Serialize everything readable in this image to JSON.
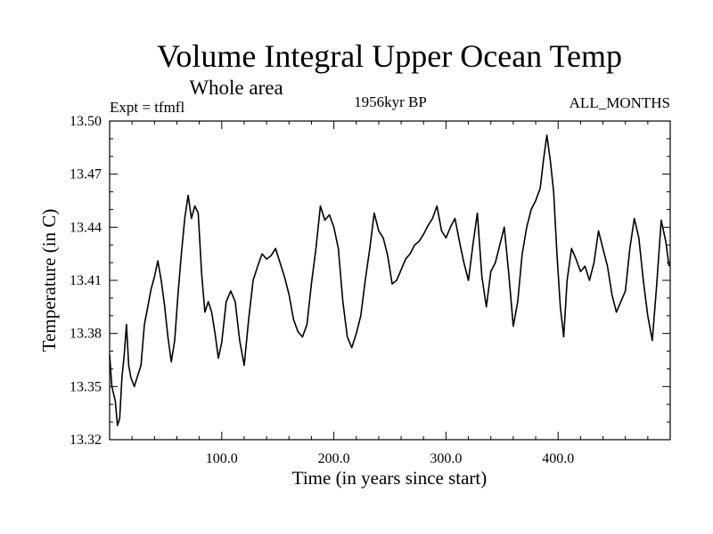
{
  "chart_data": {
    "type": "line",
    "title": "Volume Integral Upper Ocean Temp",
    "subtitle": "Whole area",
    "left_note": "Expt = tfmfl",
    "center_note": "1956kyr BP",
    "right_note": "ALL_MONTHS",
    "xlabel": "Time (in years since start)",
    "ylabel": "Temperature (in C)",
    "xlim": [
      0,
      500
    ],
    "ylim": [
      13.32,
      13.5
    ],
    "x_ticks": [
      100,
      200,
      300,
      400
    ],
    "x_tick_labels": [
      "100.0",
      "200.0",
      "300.0",
      "400.0"
    ],
    "y_ticks": [
      13.32,
      13.35,
      13.38,
      13.41,
      13.44,
      13.47,
      13.5
    ],
    "y_tick_labels": [
      "13.32",
      "13.35",
      "13.38",
      "13.41",
      "13.44",
      "13.47",
      "13.50"
    ],
    "series": [
      {
        "name": "Temperature",
        "x": [
          0,
          2,
          5,
          7,
          9,
          11,
          13,
          15,
          17,
          19,
          22,
          25,
          28,
          31,
          34,
          37,
          40,
          43,
          46,
          49,
          52,
          55,
          58,
          61,
          64,
          67,
          70,
          73,
          76,
          79,
          82,
          85,
          88,
          91,
          94,
          97,
          100,
          104,
          108,
          112,
          116,
          120,
          124,
          128,
          132,
          136,
          140,
          144,
          148,
          152,
          156,
          160,
          164,
          168,
          172,
          176,
          180,
          184,
          188,
          192,
          196,
          200,
          204,
          208,
          212,
          216,
          220,
          224,
          228,
          232,
          236,
          240,
          244,
          248,
          252,
          256,
          260,
          264,
          268,
          272,
          276,
          280,
          284,
          288,
          292,
          296,
          300,
          304,
          308,
          312,
          316,
          320,
          324,
          328,
          332,
          336,
          340,
          344,
          348,
          352,
          356,
          360,
          364,
          368,
          372,
          376,
          380,
          384,
          387,
          390,
          393,
          396,
          399,
          402,
          405,
          408,
          412,
          416,
          420,
          424,
          428,
          432,
          436,
          440,
          444,
          448,
          452,
          456,
          460,
          464,
          468,
          472,
          476,
          480,
          484,
          488,
          492,
          496,
          499
        ],
        "values": [
          13.368,
          13.35,
          13.342,
          13.328,
          13.332,
          13.355,
          13.368,
          13.385,
          13.362,
          13.355,
          13.35,
          13.356,
          13.362,
          13.385,
          13.395,
          13.405,
          13.412,
          13.421,
          13.41,
          13.396,
          13.378,
          13.364,
          13.376,
          13.402,
          13.425,
          13.445,
          13.458,
          13.445,
          13.452,
          13.448,
          13.414,
          13.392,
          13.398,
          13.392,
          13.38,
          13.366,
          13.375,
          13.398,
          13.404,
          13.398,
          13.376,
          13.362,
          13.388,
          13.41,
          13.418,
          13.425,
          13.422,
          13.424,
          13.428,
          13.42,
          13.412,
          13.402,
          13.388,
          13.381,
          13.378,
          13.385,
          13.408,
          13.428,
          13.452,
          13.444,
          13.447,
          13.44,
          13.428,
          13.398,
          13.378,
          13.372,
          13.38,
          13.39,
          13.41,
          13.428,
          13.448,
          13.438,
          13.434,
          13.424,
          13.408,
          13.41,
          13.416,
          13.422,
          13.425,
          13.43,
          13.432,
          13.436,
          13.441,
          13.445,
          13.452,
          13.438,
          13.434,
          13.44,
          13.445,
          13.432,
          13.42,
          13.41,
          13.43,
          13.448,
          13.412,
          13.395,
          13.415,
          13.42,
          13.43,
          13.44,
          13.414,
          13.384,
          13.398,
          13.425,
          13.44,
          13.45,
          13.455,
          13.462,
          13.478,
          13.492,
          13.478,
          13.46,
          13.425,
          13.395,
          13.378,
          13.41,
          13.428,
          13.422,
          13.415,
          13.418,
          13.41,
          13.42,
          13.438,
          13.428,
          13.418,
          13.402,
          13.392,
          13.398,
          13.404,
          13.428,
          13.445,
          13.434,
          13.41,
          13.39,
          13.376,
          13.408,
          13.444,
          13.432,
          13.418
        ]
      }
    ]
  }
}
